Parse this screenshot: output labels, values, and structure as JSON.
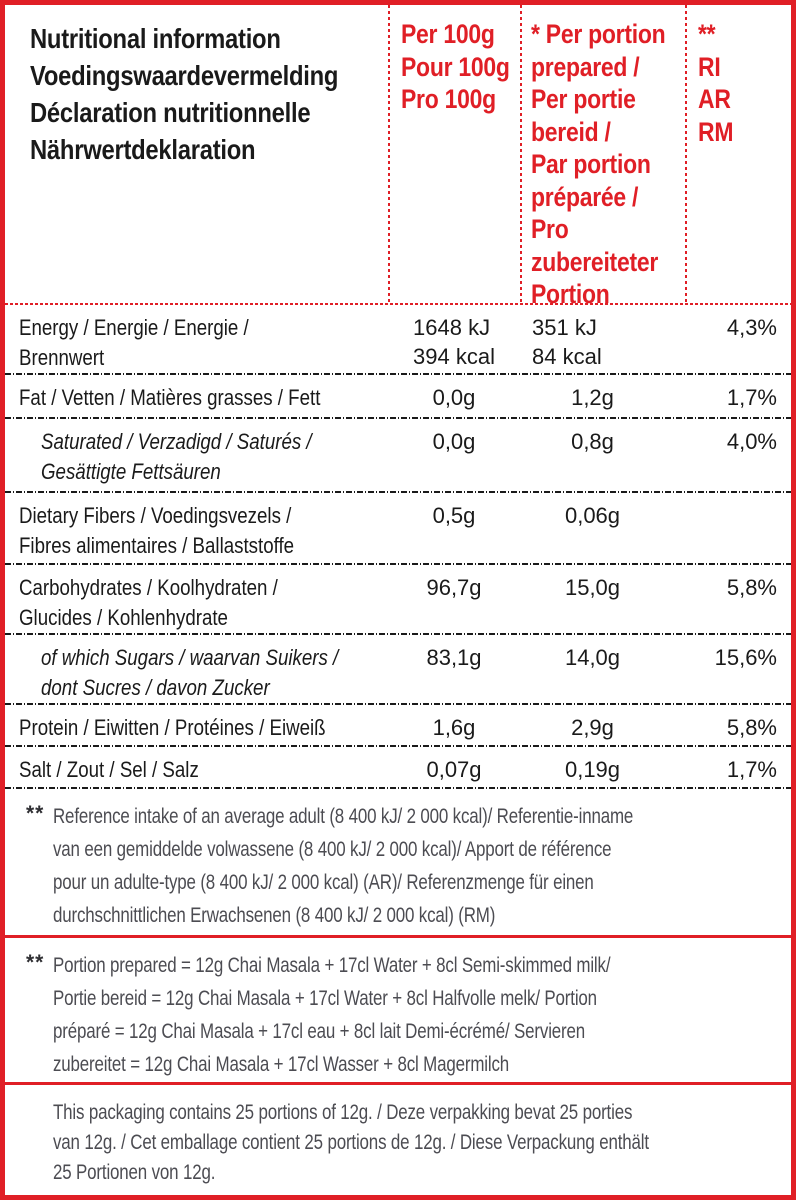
{
  "colors": {
    "accent_red": "#e01f26",
    "text_black": "#1a1a1a",
    "footnote_gray": "#4c4c52"
  },
  "header": {
    "title": "Nutritional information\nVoedingswaardevermelding\nDéclaration nutritionnelle\nNährwertdeklaration",
    "col_per_100g": "Per 100g\nPour 100g\nPro 100g",
    "col_per_portion": "* Per portion\nprepared /\nPer portie\nbereid /\nPar portion\npréparée /\nPro\nzubereiteter\nPortion",
    "col_reference": "**\nRI\nAR\nRM"
  },
  "rows": [
    {
      "label": "Energy / Energie / Energie /\nBrennwert",
      "per_100g": "1648 kJ\n394 kcal",
      "per_portion": "351 kJ\n84 kcal",
      "reference": "4,3%"
    },
    {
      "label": "Fat / Vetten / Matières grasses / Fett",
      "per_100g": "0,0g",
      "per_portion": "1,2g",
      "reference": "1,7%"
    },
    {
      "label": "Saturated / Verzadigd / Saturés /\nGesättigte Fettsäuren",
      "per_100g": "0,0g",
      "per_portion": "0,8g",
      "reference": "4,0%"
    },
    {
      "label": "Dietary Fibers / Voedingsvezels /\nFibres alimentaires / Ballaststoffe",
      "per_100g": "0,5g",
      "per_portion": "0,06g",
      "reference": ""
    },
    {
      "label": "Carbohydrates / Koolhydraten /\nGlucides / Kohlenhydrate",
      "per_100g": "96,7g",
      "per_portion": "15,0g",
      "reference": "5,8%"
    },
    {
      "label": "of which Sugars / waarvan Suikers /\ndont Sucres / davon Zucker",
      "per_100g": "83,1g",
      "per_portion": "14,0g",
      "reference": "15,6%"
    },
    {
      "label": "Protein / Eiwitten / Protéines / Eiweiß",
      "per_100g": "1,6g",
      "per_portion": "2,9g",
      "reference": "5,8%"
    },
    {
      "label": "Salt / Zout / Sel / Salz",
      "per_100g": "0,07g",
      "per_portion": "0,19g",
      "reference": "1,7%"
    }
  ],
  "footnotes": [
    {
      "marker": "**",
      "text": "Reference intake of an average adult (8 400 kJ/ 2 000 kcal)/ Referentie-inname\nvan een gemiddelde volwassene (8 400 kJ/ 2 000 kcal)/ Apport de référence\npour un adulte-type (8 400 kJ/ 2 000 kcal) (AR)/ Referenzmenge für einen\ndurchschnittlichen Erwachsenen (8 400 kJ/ 2 000 kcal) (RM)"
    },
    {
      "marker": "**",
      "text": "Portion prepared = 12g Chai Masala + 17cl Water + 8cl Semi-skimmed milk/\nPortie bereid = 12g Chai Masala + 17cl Water + 8cl Halfvolle melk/ Portion\npréparé = 12g Chai Masala + 17cl eau + 8cl lait Demi-écrémé/ Servieren\nzubereitet = 12g Chai Masala + 17cl Wasser + 8cl Magermilch"
    },
    {
      "marker": "",
      "text": "This packaging contains 25 portions of 12g. / Deze verpakking bevat 25 porties\nvan 12g. / Cet emballage contient 25 portions de 12g. / Diese Verpackung enthält\n25  Portionen von 12g."
    }
  ]
}
